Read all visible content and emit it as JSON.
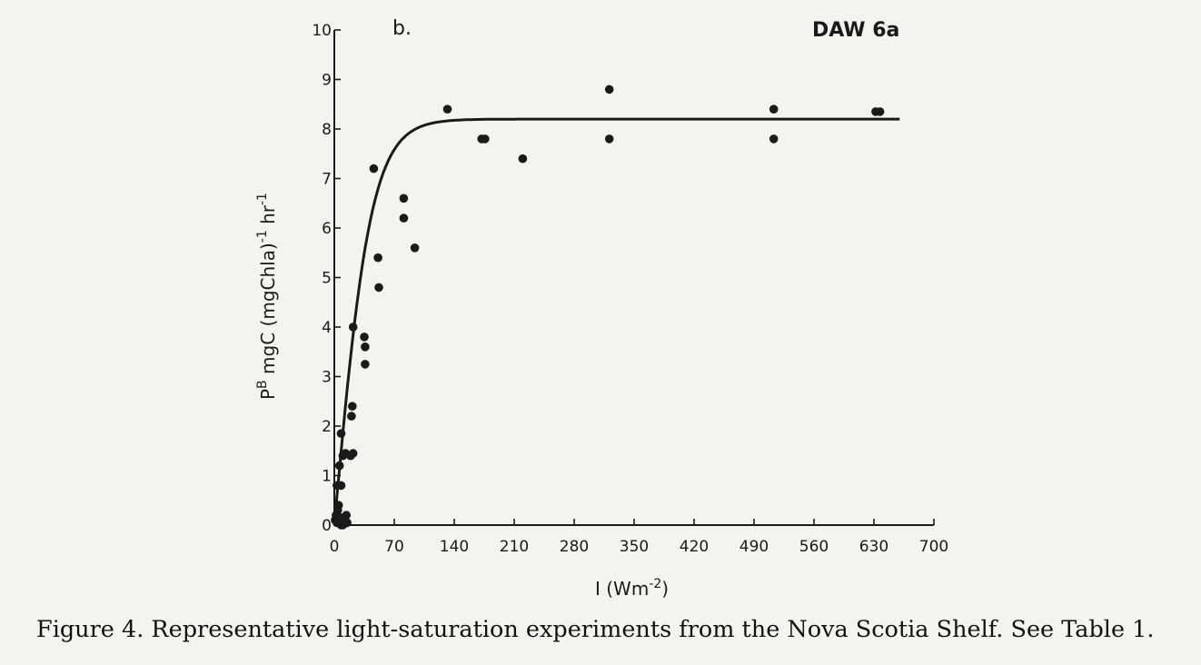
{
  "caption": "Figure 4. Representative light-saturation experiments from the Nova Scotia Shelf. See Table 1.",
  "chart_data": {
    "type": "scatter",
    "panel_label": "b.",
    "station_label": "DAW 6a",
    "xlabel_main": "I (Wm",
    "xlabel_sup": "-2",
    "xlabel_end": ")",
    "ylabel_p": "P",
    "ylabel_sup": "B",
    "ylabel_rest": " mgC (mgChla)",
    "ylabel_sup2": "-1",
    "ylabel_end": " hr",
    "ylabel_sup3": "-1",
    "xlim": [
      0,
      700
    ],
    "ylim": [
      0,
      10
    ],
    "xticks": [
      0,
      70,
      140,
      210,
      280,
      350,
      420,
      490,
      560,
      630,
      700
    ],
    "xtick_labels": [
      "0",
      "70",
      "140",
      "210",
      "280",
      "350",
      "420",
      "490",
      "560",
      "630",
      "700"
    ],
    "yticks": [
      0,
      1,
      2,
      3,
      4,
      5,
      6,
      7,
      8,
      9,
      10
    ],
    "ytick_labels": [
      "0",
      "1",
      "2",
      "3",
      "4",
      "5",
      "6",
      "7",
      "8",
      "9",
      "10"
    ],
    "grid": false,
    "points": [
      {
        "x": 1,
        "y": 0.1
      },
      {
        "x": 2,
        "y": 0.2
      },
      {
        "x": 3,
        "y": 0.05
      },
      {
        "x": 4,
        "y": 0.3
      },
      {
        "x": 5,
        "y": 0.1
      },
      {
        "x": 6,
        "y": 0.05
      },
      {
        "x": 7,
        "y": 0.15
      },
      {
        "x": 8,
        "y": 0.0
      },
      {
        "x": 9,
        "y": 0.05
      },
      {
        "x": 10,
        "y": 0.0
      },
      {
        "x": 11,
        "y": 0.1
      },
      {
        "x": 12,
        "y": 0.05
      },
      {
        "x": 14,
        "y": 0.2
      },
      {
        "x": 15,
        "y": 0.05
      },
      {
        "x": 3,
        "y": 0.8
      },
      {
        "x": 5,
        "y": 0.4
      },
      {
        "x": 6,
        "y": 1.2
      },
      {
        "x": 8,
        "y": 0.8
      },
      {
        "x": 8,
        "y": 1.85
      },
      {
        "x": 10,
        "y": 1.4
      },
      {
        "x": 13,
        "y": 1.45
      },
      {
        "x": 19,
        "y": 1.4
      },
      {
        "x": 22,
        "y": 1.45
      },
      {
        "x": 20,
        "y": 2.2
      },
      {
        "x": 21,
        "y": 2.4
      },
      {
        "x": 22,
        "y": 4.0
      },
      {
        "x": 35,
        "y": 3.8
      },
      {
        "x": 36,
        "y": 3.6
      },
      {
        "x": 36,
        "y": 3.25
      },
      {
        "x": 46,
        "y": 7.2
      },
      {
        "x": 51,
        "y": 5.4
      },
      {
        "x": 52,
        "y": 4.8
      },
      {
        "x": 81,
        "y": 6.6
      },
      {
        "x": 81,
        "y": 6.2
      },
      {
        "x": 94,
        "y": 5.6
      },
      {
        "x": 132,
        "y": 8.4
      },
      {
        "x": 172,
        "y": 7.8
      },
      {
        "x": 176,
        "y": 7.8
      },
      {
        "x": 220,
        "y": 7.4
      },
      {
        "x": 321,
        "y": 8.8
      },
      {
        "x": 321,
        "y": 7.8
      },
      {
        "x": 513,
        "y": 8.4
      },
      {
        "x": 513,
        "y": 7.8
      },
      {
        "x": 632,
        "y": 8.35
      },
      {
        "x": 637,
        "y": 8.35
      }
    ],
    "fit_curve": {
      "name": "",
      "pmax": 8.2,
      "alpha": 0.19,
      "x_range": [
        0,
        660
      ]
    }
  },
  "colors": {
    "ink": "#1a1a1a",
    "background": "#f4f4ef"
  }
}
